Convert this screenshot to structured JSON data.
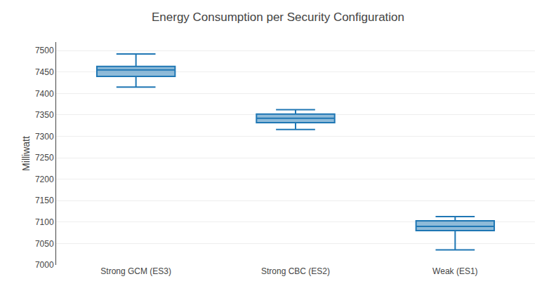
{
  "chart_data": {
    "type": "box",
    "title": "Energy Consumption per Security Configuration",
    "ylabel": "Milliwatt",
    "categories": [
      "Strong GCM (ES3)",
      "Strong CBC (ES2)",
      "Weak (ES1)"
    ],
    "boxes": [
      {
        "whislo": 7415,
        "q1": 7440,
        "med": 7455,
        "q3": 7463,
        "whishi": 7492
      },
      {
        "whislo": 7316,
        "q1": 7332,
        "med": 7342,
        "q3": 7352,
        "whishi": 7362
      },
      {
        "whislo": 7035,
        "q1": 7080,
        "med": 7090,
        "q3": 7103,
        "whishi": 7113
      }
    ],
    "ylim": [
      7000,
      7520
    ],
    "yticks": [
      7000,
      7050,
      7100,
      7150,
      7200,
      7250,
      7300,
      7350,
      7400,
      7450,
      7500
    ],
    "grid": true
  }
}
